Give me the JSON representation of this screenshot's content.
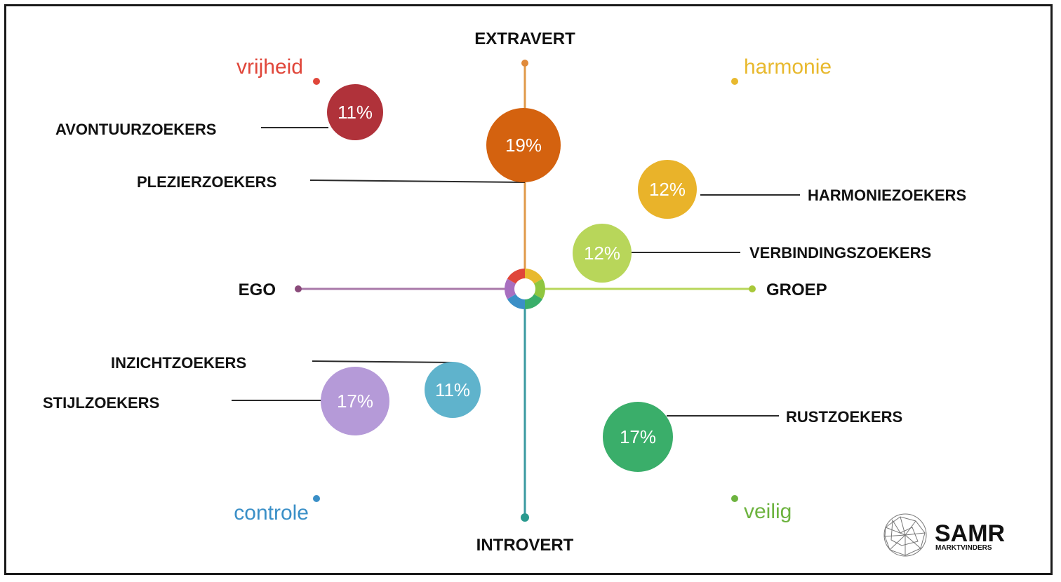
{
  "axes": {
    "top": "EXTRAVERT",
    "bottom": "INTROVERT",
    "left": "EGO",
    "right": "GROEP"
  },
  "corners": {
    "top_left": {
      "label": "vrijheid",
      "color": "#e0463a"
    },
    "top_right": {
      "label": "harmonie",
      "color": "#e8b92e"
    },
    "bottom_left": {
      "label": "controle",
      "color": "#3a8fc7"
    },
    "bottom_right": {
      "label": "veilig",
      "color": "#6db33f"
    }
  },
  "segments": [
    {
      "name": "AVONTUURZOEKERS",
      "percent": "11%",
      "color": "#b0323a"
    },
    {
      "name": "PLEZIERZOEKERS",
      "percent": "19%",
      "color": "#d4620f"
    },
    {
      "name": "HARMONIEZOEKERS",
      "percent": "12%",
      "color": "#e9b32a"
    },
    {
      "name": "VERBINDINGSZOEKERS",
      "percent": "12%",
      "color": "#b8d65a"
    },
    {
      "name": "INZICHTZOEKERS",
      "percent": "11%",
      "color": "#5fb3cc"
    },
    {
      "name": "STIJLZOEKERS",
      "percent": "17%",
      "color": "#b59ad8"
    },
    {
      "name": "RUSTZOEKERS",
      "percent": "17%",
      "color": "#3aae6a"
    }
  ],
  "logo": {
    "title": "SAMR",
    "subtitle": "MARKTVINDERS"
  }
}
